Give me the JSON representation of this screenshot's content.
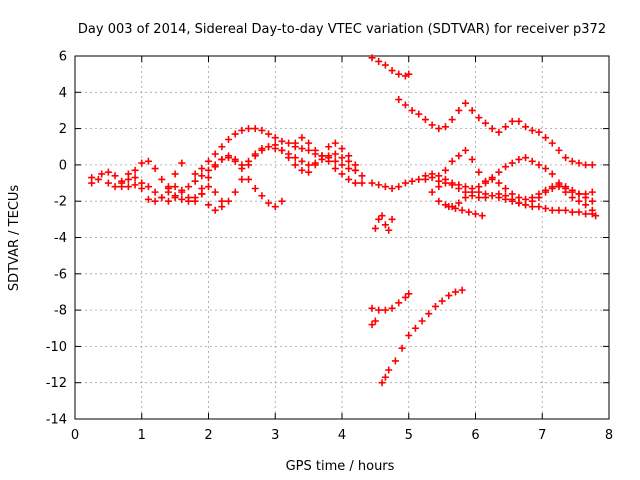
{
  "chart_data": {
    "type": "scatter",
    "title": "Day 003 of 2014, Sidereal Day-to-day VTEC variation (SDTVAR) for receiver p372",
    "xlabel": "GPS time / hours",
    "ylabel": "SDTVAR / TECUs",
    "xlim": [
      0,
      8
    ],
    "ylim": [
      -14,
      6
    ],
    "xticks": [
      "0",
      "1",
      "2",
      "3",
      "4",
      "5",
      "6",
      "7",
      "8"
    ],
    "yticks": [
      "6",
      "4",
      "2",
      "0",
      "-2",
      "-4",
      "-6",
      "-8",
      "-10",
      "-12",
      "-14"
    ],
    "grid": true,
    "marker": "+",
    "color": "#ff0000",
    "series": [
      {
        "x": [
          0.25,
          0.4,
          0.5,
          0.6,
          0.7,
          0.8,
          0.9,
          1.0,
          1.1,
          1.2,
          1.3,
          1.4,
          1.5,
          1.6
        ],
        "y": [
          -1.0,
          -0.5,
          -0.4,
          -0.6,
          -1.0,
          -1.2,
          -1.1,
          -1.0,
          -1.2,
          -1.5,
          -1.8,
          -1.2,
          -0.5,
          0.1
        ]
      },
      {
        "x": [
          0.25,
          0.35,
          0.5,
          0.6,
          0.7,
          0.8,
          0.9,
          1.0,
          1.1,
          1.2,
          1.3,
          1.4,
          1.5,
          1.6,
          1.7,
          1.8,
          1.9,
          2.0,
          2.1,
          2.2
        ],
        "y": [
          -0.7,
          -0.8,
          -1.0,
          -1.2,
          -0.9,
          -0.5,
          -0.7,
          -1.3,
          -1.9,
          -2.0,
          -1.8,
          -1.5,
          -1.2,
          -1.4,
          -1.8,
          -2.0,
          -1.6,
          -1.2,
          -1.5,
          -2.0
        ]
      },
      {
        "x": [
          0.7,
          0.8,
          0.9,
          1.0,
          1.1,
          1.2,
          1.3,
          1.4,
          1.5,
          1.6,
          1.7,
          1.8,
          1.9,
          2.0,
          2.1,
          2.2,
          2.3
        ],
        "y": [
          -1.2,
          -0.8,
          -0.3,
          0.1,
          0.2,
          -0.2,
          -0.8,
          -1.3,
          -1.7,
          -1.9,
          -2.0,
          -1.8,
          -1.6,
          -2.2,
          -2.5,
          -2.3,
          -2.0
        ]
      },
      {
        "x": [
          1.4,
          1.5,
          1.6,
          1.7,
          1.8,
          1.9,
          2.0,
          2.1,
          2.2,
          2.3,
          2.4,
          2.5,
          2.6,
          2.7,
          2.8,
          2.9,
          3.0,
          3.1
        ],
        "y": [
          -2.0,
          -1.8,
          -1.5,
          -1.2,
          -0.9,
          -0.6,
          -0.3,
          0.0,
          0.3,
          0.5,
          0.3,
          -0.2,
          -0.8,
          -1.3,
          -1.7,
          -2.1,
          -2.3,
          -2.0
        ]
      },
      {
        "x": [
          1.8,
          1.9,
          2.0,
          2.1,
          2.2,
          2.3,
          2.4,
          2.5,
          2.6,
          2.7,
          2.8,
          2.9,
          3.0,
          3.1,
          3.2,
          3.3,
          3.4,
          3.5,
          3.6,
          3.7,
          3.8,
          3.9,
          4.0,
          4.1,
          4.2
        ],
        "y": [
          -0.5,
          -0.2,
          0.2,
          0.6,
          1.0,
          1.4,
          1.7,
          1.9,
          2.0,
          2.0,
          1.9,
          1.7,
          1.5,
          1.3,
          1.2,
          1.0,
          0.9,
          0.8,
          0.6,
          0.5,
          0.4,
          0.2,
          0.0,
          -0.2,
          -0.3
        ]
      },
      {
        "x": [
          1.9,
          2.0,
          2.1,
          2.2,
          2.3,
          2.4,
          2.5,
          2.6,
          2.7,
          2.8,
          2.9,
          3.0,
          3.1,
          3.2,
          3.3,
          3.4,
          3.5,
          3.6,
          3.7,
          3.8,
          3.9,
          4.0,
          4.1,
          4.2
        ],
        "y": [
          -1.3,
          -0.7,
          -0.1,
          0.3,
          0.4,
          0.2,
          0.0,
          0.2,
          0.6,
          0.9,
          1.0,
          0.9,
          0.8,
          0.6,
          0.4,
          0.2,
          0.0,
          0.1,
          0.3,
          0.5,
          0.6,
          0.4,
          0.2,
          0.0
        ]
      },
      {
        "x": [
          2.4,
          2.5,
          2.6,
          2.7,
          2.8,
          2.9,
          3.0,
          3.1,
          3.2,
          3.3,
          3.4,
          3.5,
          3.6,
          3.7,
          3.8,
          3.9,
          4.0,
          4.1,
          4.2,
          4.3
        ],
        "y": [
          -1.5,
          -0.8,
          0.0,
          0.5,
          0.8,
          1.0,
          1.1,
          0.8,
          0.4,
          0.0,
          -0.3,
          -0.4,
          0.0,
          0.5,
          1.0,
          1.2,
          0.9,
          0.5,
          -0.3,
          -1.0
        ]
      },
      {
        "x": [
          3.3,
          3.4,
          3.5,
          3.6,
          3.7,
          3.8,
          3.9,
          4.0,
          4.1,
          4.2,
          4.3
        ],
        "y": [
          1.2,
          1.5,
          1.2,
          0.8,
          0.5,
          0.2,
          -0.2,
          -0.5,
          -0.8,
          -1.0,
          -0.6
        ]
      },
      {
        "x": [
          4.45,
          4.55,
          4.65,
          4.75,
          4.85,
          4.95,
          5.0
        ],
        "y": [
          5.9,
          5.7,
          5.5,
          5.2,
          5.0,
          4.9,
          5.0
        ]
      },
      {
        "x": [
          4.85,
          4.95,
          5.05,
          5.15,
          5.25,
          5.35,
          5.45,
          5.55,
          5.65,
          5.75,
          5.85,
          5.95,
          6.05,
          6.15,
          6.25,
          6.35,
          6.45,
          6.55,
          6.65,
          6.75,
          6.85,
          6.95,
          7.05,
          7.15,
          7.25,
          7.35,
          7.45,
          7.55,
          7.65,
          7.75
        ],
        "y": [
          3.6,
          3.3,
          3.0,
          2.8,
          2.5,
          2.2,
          2.0,
          2.1,
          2.5,
          3.0,
          3.4,
          3.0,
          2.6,
          2.3,
          2.0,
          1.8,
          2.1,
          2.4,
          2.4,
          2.1,
          1.9,
          1.8,
          1.5,
          1.2,
          0.8,
          0.4,
          0.2,
          0.1,
          0.0,
          0.0
        ]
      },
      {
        "x": [
          4.45,
          4.55,
          4.65,
          4.75,
          4.85,
          4.95,
          5.05,
          5.15,
          5.25,
          5.35,
          5.45,
          5.55,
          5.65,
          5.75,
          5.85,
          5.95,
          6.05,
          6.15,
          6.25,
          6.35,
          6.45,
          6.55,
          6.65,
          6.75,
          6.85,
          6.95,
          7.05,
          7.15,
          7.25,
          7.35,
          7.45,
          7.55,
          7.65,
          7.75,
          7.8
        ],
        "y": [
          -1.0,
          -1.1,
          -1.2,
          -1.3,
          -1.2,
          -1.0,
          -0.9,
          -0.8,
          -0.6,
          -0.5,
          -0.6,
          -0.8,
          -1.0,
          -1.1,
          -1.2,
          -1.3,
          -1.5,
          -1.6,
          -1.7,
          -1.8,
          -1.9,
          -2.0,
          -2.1,
          -2.2,
          -2.3,
          -2.3,
          -2.4,
          -2.5,
          -2.5,
          -2.5,
          -2.6,
          -2.6,
          -2.7,
          -2.7,
          -2.8
        ]
      },
      {
        "x": [
          5.25,
          5.35,
          5.45,
          5.55,
          5.65,
          5.75,
          5.85,
          5.95,
          6.05,
          6.15,
          6.25,
          6.35,
          6.45,
          6.55,
          6.65,
          6.75,
          6.85,
          6.95,
          7.05,
          7.15,
          7.25,
          7.35,
          7.45,
          7.55,
          7.65,
          7.75
        ],
        "y": [
          -0.8,
          -0.7,
          -0.9,
          -0.3,
          0.2,
          0.5,
          0.8,
          0.3,
          -0.4,
          -1.0,
          -0.7,
          -0.4,
          -0.1,
          0.1,
          0.3,
          0.4,
          0.2,
          0.0,
          -0.2,
          -0.5,
          -1.0,
          -1.5,
          -1.8,
          -2.0,
          -2.2,
          -2.5
        ]
      },
      {
        "x": [
          5.35,
          5.45,
          5.55,
          5.65,
          5.75,
          5.85,
          5.95,
          6.05,
          6.15,
          6.25,
          6.35,
          6.45,
          6.55,
          6.65,
          6.75,
          6.85,
          6.95,
          7.05,
          7.15,
          7.25,
          7.35,
          7.45,
          7.55,
          7.65,
          7.75
        ],
        "y": [
          -1.5,
          -1.2,
          -1.0,
          -1.1,
          -1.3,
          -1.5,
          -1.7,
          -1.8,
          -1.8,
          -1.7,
          -1.6,
          -1.7,
          -1.9,
          -2.1,
          -2.2,
          -2.0,
          -1.8,
          -1.5,
          -1.3,
          -1.2,
          -1.3,
          -1.5,
          -1.6,
          -1.6,
          -1.5
        ]
      },
      {
        "x": [
          5.45,
          5.55,
          5.65,
          5.75,
          5.85,
          5.95,
          6.05,
          6.15,
          6.25,
          6.35,
          6.45,
          6.55,
          6.65,
          6.75,
          6.85,
          6.95,
          7.05,
          7.15,
          7.25,
          7.35,
          7.45,
          7.55,
          7.65,
          7.75
        ],
        "y": [
          -2.0,
          -2.2,
          -2.3,
          -2.1,
          -1.8,
          -1.5,
          -1.2,
          -0.9,
          -0.8,
          -1.0,
          -1.3,
          -1.6,
          -1.8,
          -1.9,
          -1.8,
          -1.6,
          -1.4,
          -1.2,
          -1.1,
          -1.2,
          -1.4,
          -1.6,
          -1.8,
          -2.0
        ]
      },
      {
        "x": [
          5.6,
          5.7,
          5.8,
          5.9,
          6.0,
          6.1
        ],
        "y": [
          -2.3,
          -2.4,
          -2.5,
          -2.6,
          -2.7,
          -2.8
        ]
      },
      {
        "x": [
          4.5,
          4.55,
          4.6,
          4.65,
          4.7,
          4.75
        ],
        "y": [
          -3.5,
          -3.0,
          -2.8,
          -3.3,
          -3.6,
          -3.0
        ]
      },
      {
        "x": [
          4.45,
          4.55,
          4.65,
          4.75,
          4.85,
          4.95,
          5.0
        ],
        "y": [
          -7.9,
          -8.0,
          -8.0,
          -7.9,
          -7.6,
          -7.3,
          -7.1
        ]
      },
      {
        "x": [
          4.45,
          4.5
        ],
        "y": [
          -8.8,
          -8.6
        ]
      },
      {
        "x": [
          4.6,
          4.65,
          4.7,
          4.8,
          4.9,
          5.0,
          5.1,
          5.2,
          5.3,
          5.4,
          5.5,
          5.6,
          5.7,
          5.8
        ],
        "y": [
          -12.0,
          -11.7,
          -11.3,
          -10.8,
          -10.1,
          -9.4,
          -9.0,
          -8.6,
          -8.2,
          -7.8,
          -7.5,
          -7.2,
          -7.0,
          -6.9
        ]
      }
    ]
  }
}
